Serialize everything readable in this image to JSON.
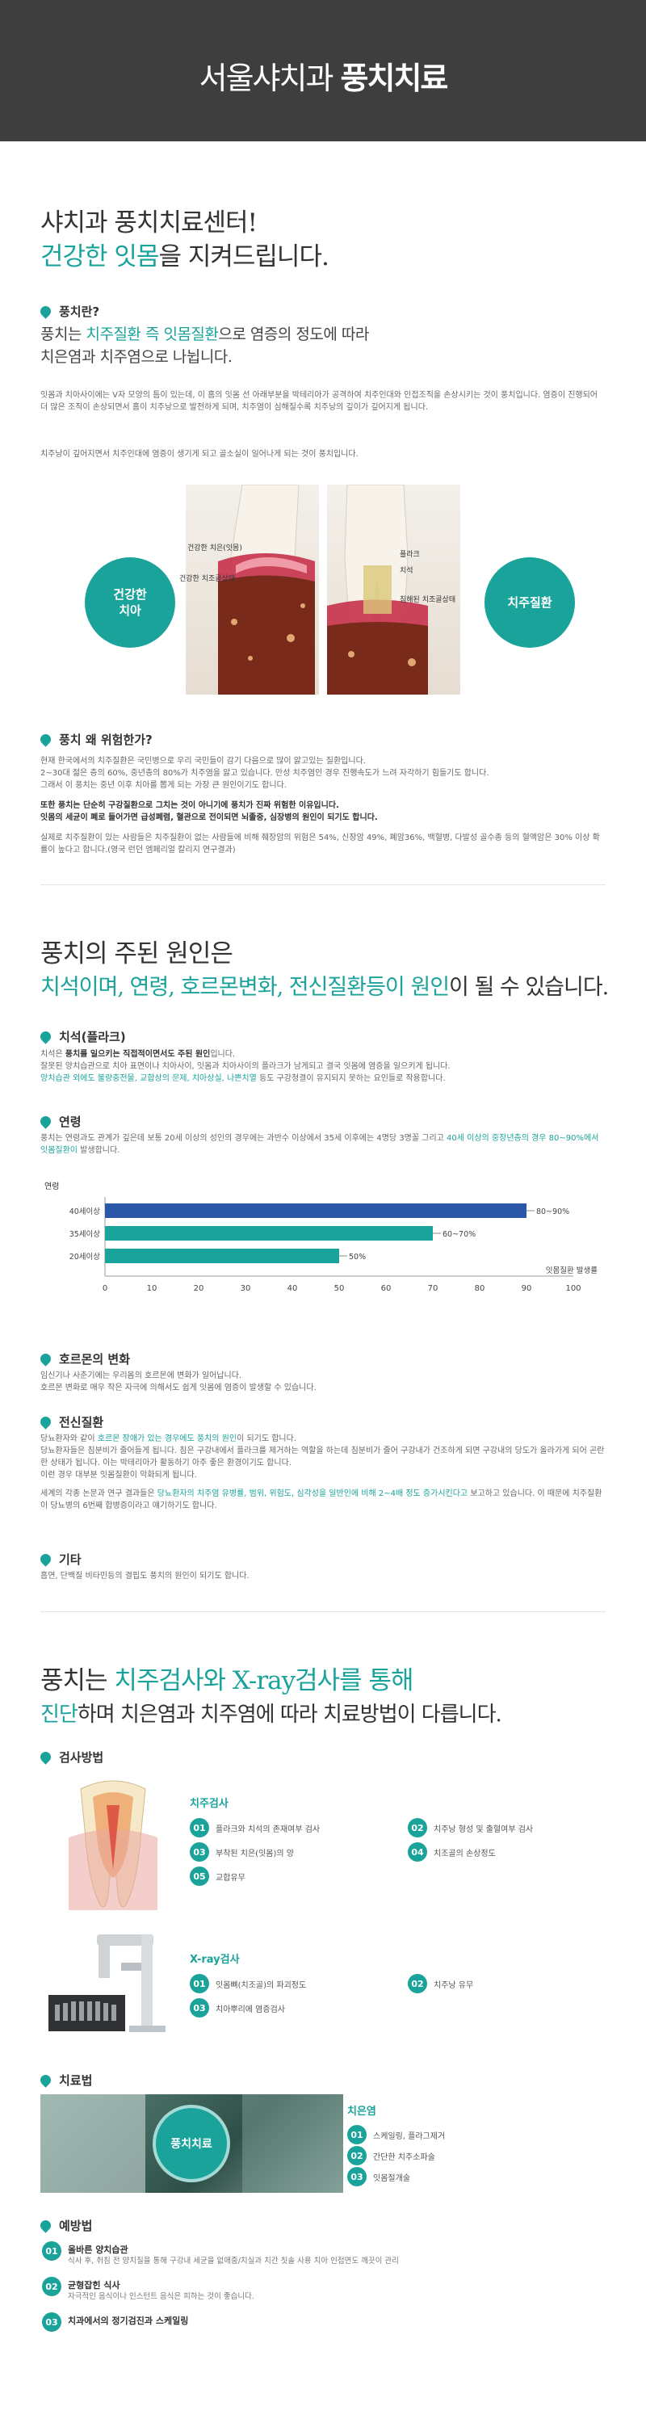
{
  "hero": {
    "title_light": "서울샤치과",
    "title_bold": "풍치치료"
  },
  "s1": {
    "head_line1": "샤치과 풍치치료센터!",
    "head_accent": "건강한 잇몸",
    "head_line2_rest": "을 지켜드립니다.",
    "q1_title": "풍치란?",
    "lead_pre": "풍치는 ",
    "lead_accent": "치주질환 즉 잇몸질환",
    "lead_post1": "으로 염증의 정도에 따라",
    "lead_post2": "치은염과 치주염으로 나뉩니다.",
    "para1": "잇몸과 치아사이에는 V자 모양의 틈이 있는데, 이 홈의 잇몸 선 아래부분을 박테리아가 공격하여 치주인대와 인접조직을 손상시키는 것이 풍치입니다. 염증이 진행되어 더 많은 조직이 손상되면서 홈이 치주낭으로 발전하게 되며, 치주염이 심해질수록 치주낭의 깊이가 깊어지게 됩니다.",
    "para_accent": "치주낭이 깊어지면서 치주인대에 염증이 생기게 되고 골소실이 일어나게 되는 것이 풍치입니다."
  },
  "diagram": {
    "left_circle": "건강한\n치아",
    "right_circle": "치주질환",
    "l_label1": "건강한 치은(잇몸)",
    "l_label2": "건강한 치조골상태",
    "r_label1": "플라크",
    "r_label2": "치석",
    "r_label3": "침해된 치조골상태"
  },
  "s1b": {
    "title": "풍치 왜 위험한가?",
    "p1": "현재 한국에서의 치주질환은 국민병으로 우리 국민들이 감기 다음으로 많이 앓고있는 질환입니다.",
    "p2": "2~30대 젊은 층의 60%, 중년층의 80%가 치주염을 앓고 있습니다. 만성 치주염인 경우 진행속도가 느려 자각하기 힘들기도 합니다.",
    "p3": "그래서 이 풍치는 중년 이후 치아를 뽑게 되는 가장 큰 원인이기도 합니다.",
    "bold1": "또한 풍치는 단순히 구강질환으로 그치는 것이 아니기에 풍치가 진짜 위험한 이유입니다.",
    "bold2": "잇몸의 세균이 폐로 들어가면 급성폐렴, 혈관으로 전이되면 뇌졸중, 심장병의 원인이 되기도 합니다.",
    "p4": "실제로 치주질환이 있는 사람들은 치주질환이 없는 사람들에 비해 췌장암의 위험은 54%, 신장암 49%, 폐암36%, 백혈병, 다발성 골수종 등의 혈액암은 30% 이상 확률이 높다고 합니다.(영국 런던 엠페리얼 칼리지 연구결과)"
  },
  "s2": {
    "head_line1": "풍치의 주된 원인은",
    "head_accent": "치석이며, 연령, 호르몬변화, 전신질환등이 원인",
    "head_rest": "이 될 수 있습니다.",
    "c1_title": "치석(플라크)",
    "c1_p1_pre": "치석은 ",
    "c1_p1_bold": "풍치를 일으키는 직접적이면서도 주된 원인",
    "c1_p1_post": "입니다.",
    "c1_p2": "잘못된 양치습관으로 치아 표면이나 치아사이, 잇몸과 치아사이의 플라크가 남게되고 결국 잇몸에 염증을 일으키게 됩니다.",
    "c1_p3_accent": "양치습관 외에도 불량충전물, 교합상의 문제, 치아상실, 나쁜치열",
    "c1_p3_rest": " 등도 구강청결이 유지되지 못하는 요인들로 작용합니다.",
    "c2_title": "연령",
    "c2_p1": "풍치는 연령과도 관계가 깊은데 보통 20세 이상의 성인의 경우에는 과반수 이상에서 35세 이후에는 4명당 3명꼴 그리고 ",
    "c2_p1_accent": "40세 이상의 중장년층의 경우 80~90%에서 잇몸질환이",
    "c2_p1_rest": " 발생합니다.",
    "c3_title": "호르몬의 변화",
    "c3_p1": "임신기나 사춘기에는 우리몸의 호르몬에 변화가 일어납니다.",
    "c3_p2": "호르몬 변화로 매우 작은 자극에 의해서도 쉽게 잇몸에 염증이 발생할 수 있습니다.",
    "c4_title": "전신질환",
    "c4_p1_pre": "당뇨환자와 같이 ",
    "c4_p1_accent": "호르몬 장애가 있는 경우에도 풍치의 원인",
    "c4_p1_post": "이 되기도 합니다.",
    "c4_p2": "당뇨환자들은 침분비가 줄어들게 됩니다. 침은 구강내에서 플라크를 제거하는 역할을 하는데 침분비가 줄어 구강내가 건조하게 되면 구강내의 당도가 올라가게 되어 곤란한 상태가 됩니다. 이는 박테리아가 활동하기 아주 좋은 환경이기도 합니다.",
    "c4_p3": "이런 경우 대부분 잇몸질환이 악화되게 됩니다.",
    "c4_p4_pre": "세계의 각종 논문과 연구 결과들은 ",
    "c4_p4_accent": "당뇨환자의 치주염 유병률, 범위, 위험도, 심각성을 일반인에 비해 2~4배 정도 증가시킨다고",
    "c4_p4_post": " 보고하고 있습니다. 이 때문에 치주질환이 당뇨병의 6번째 합병증이라고 얘기하기도 합니다.",
    "c5_title": "기타",
    "c5_p1": "흡연, 단백질 비타민등의 결핍도 풍치의 원인이 되기도 합니다."
  },
  "chart_data": {
    "type": "bar",
    "orientation": "horizontal",
    "title": "",
    "ylabel": "연령",
    "xlabel": "잇몸질환 발생률",
    "categories": [
      "40세이상",
      "35세이상",
      "20세이상"
    ],
    "values": [
      90,
      70,
      50
    ],
    "data_labels": [
      "80~90%",
      "60~70%",
      "50%"
    ],
    "colors": [
      "#2b57a8",
      "#1aa39a",
      "#1aa39a"
    ],
    "xlim": [
      0,
      100
    ],
    "xticks": [
      "0",
      "10",
      "20",
      "30",
      "40",
      "50",
      "60",
      "70",
      "80",
      "90",
      "100"
    ]
  },
  "s3": {
    "head_pre": "풍치는 ",
    "head_accent": "치주검사와 X-ray검사를 통해",
    "head_line2_accent": "진단",
    "head_line2_rest": "하며 치은염과 치주염에 따라 치료방법이 다릅니다.",
    "exam_title": "검사방법",
    "perio_title": "치주검사",
    "perio_items": [
      {
        "n": "01",
        "t": "플라크와 치석의 존재여부 검사"
      },
      {
        "n": "02",
        "t": "치주낭 형성 및 출혈여부 검사"
      },
      {
        "n": "03",
        "t": "부착된 치은(잇몸)의 양"
      },
      {
        "n": "04",
        "t": "치조골의 손상정도"
      },
      {
        "n": "05",
        "t": "교합유무"
      }
    ],
    "xray_title": "X-ray검사",
    "xray_items": [
      {
        "n": "01",
        "t": "잇몸뼈(치조골)의 파괴정도"
      },
      {
        "n": "02",
        "t": "치주낭 유무"
      },
      {
        "n": "03",
        "t": "치아뿌리에 염증검사"
      }
    ],
    "treat_title": "치료법",
    "photo_stamp": "풍치치료",
    "gingivitis_title": "치은염",
    "gingivitis_items": [
      {
        "n": "01",
        "t": "스케일링, 플라그제거"
      },
      {
        "n": "02",
        "t": "간단한 치주소파술"
      },
      {
        "n": "03",
        "t": "잇몸절개술"
      }
    ],
    "prevent_title": "예방법",
    "prevent_items": [
      {
        "n": "01",
        "t": "올바른 양치습관",
        "d": "식사 후, 취침 전 양치질을 통해 구강내 세균을 없애줌/치실과 치간 칫솔 사용 치아 인접면도 깨끗이 관리"
      },
      {
        "n": "02",
        "t": "균형잡힌 식사",
        "d": "자극적인 음식이나 인스턴트 음식은 피하는 것이 좋습니다."
      },
      {
        "n": "03",
        "t": "치과에서의 정기검진과 스케일링",
        "d": ""
      }
    ]
  }
}
